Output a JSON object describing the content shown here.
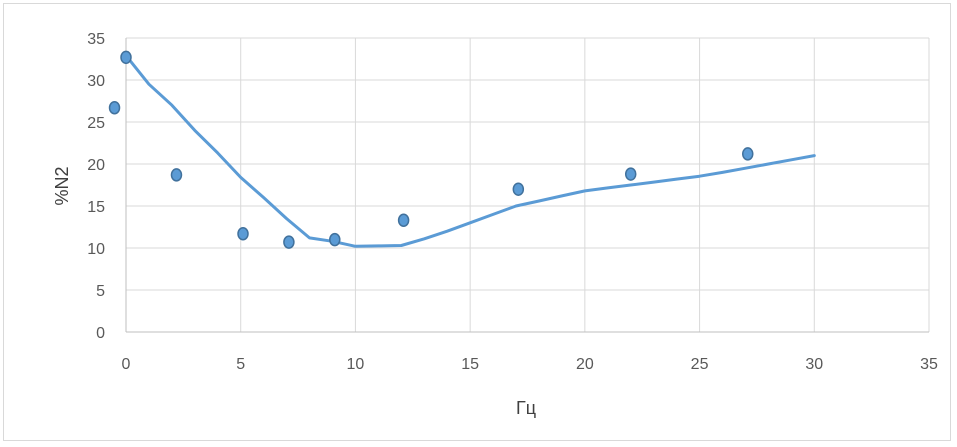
{
  "chart_data": {
    "type": "scatter",
    "xlabel": "Гц",
    "ylabel": "%N2",
    "xlim": [
      0,
      35
    ],
    "ylim": [
      0,
      35
    ],
    "x_ticks": [
      "0",
      "5",
      "10",
      "15",
      "20",
      "25",
      "30",
      "35"
    ],
    "y_ticks": [
      "0",
      "5",
      "10",
      "15",
      "20",
      "25",
      "30",
      "35"
    ],
    "grid": true,
    "legend": "none",
    "series": [
      {
        "kind": "points",
        "color": "#5b9bd5",
        "x": [
          -0.5,
          0,
          2.2,
          5.1,
          7.1,
          9.1,
          12.1,
          17.1,
          22,
          27.1
        ],
        "y": [
          26.7,
          32.7,
          18.7,
          11.7,
          10.7,
          11,
          13.3,
          17,
          18.8,
          21.2
        ]
      },
      {
        "kind": "line",
        "color": "#5b9bd5",
        "x": [
          0,
          1,
          2,
          3,
          4,
          5,
          6,
          7,
          8,
          9,
          10,
          11,
          12,
          13,
          14,
          15,
          16,
          17,
          18,
          19,
          20,
          21,
          22,
          23,
          24,
          25,
          26,
          27,
          28,
          29,
          30
        ],
        "y": [
          32.9,
          29.5,
          27.0,
          24.0,
          21.3,
          18.4,
          16.0,
          13.5,
          11.2,
          10.8,
          10.2,
          10.25,
          10.3,
          11.1,
          12.0,
          13.0,
          14.0,
          15.0,
          15.6,
          16.2,
          16.8,
          17.15,
          17.5,
          17.85,
          18.2,
          18.55,
          19.0,
          19.5,
          20.0,
          20.5,
          21.0
        ]
      }
    ]
  }
}
